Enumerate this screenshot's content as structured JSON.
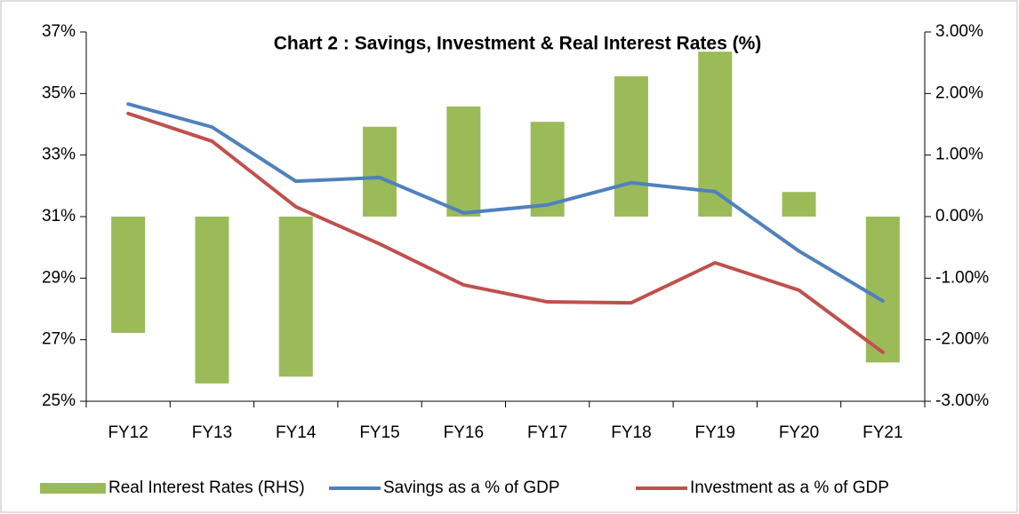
{
  "chart_data": {
    "type": "bar-line",
    "title": "Chart 2 : Savings, Investment & Real Interest Rates (%)",
    "categories": [
      "FY12",
      "FY13",
      "FY14",
      "FY15",
      "FY16",
      "FY17",
      "FY18",
      "FY19",
      "FY20",
      "FY21"
    ],
    "series": [
      {
        "name": "Real Interest Rates (RHS)",
        "type": "bar",
        "axis": "y2",
        "color": "#9bbb59",
        "values": [
          -1.89,
          -2.71,
          -2.6,
          1.46,
          1.79,
          1.54,
          2.28,
          2.68,
          0.4,
          -2.37
        ]
      },
      {
        "name": "Savings as a % of GDP",
        "type": "line",
        "axis": "y",
        "color": "#4f81bd",
        "values": [
          34.66,
          33.91,
          32.15,
          32.27,
          31.12,
          31.38,
          32.1,
          31.81,
          29.88,
          28.26
        ]
      },
      {
        "name": "Investment as a % of GDP",
        "type": "line",
        "axis": "y",
        "color": "#c0504d",
        "values": [
          34.35,
          33.45,
          31.32,
          30.11,
          28.78,
          28.23,
          28.2,
          29.5,
          28.61,
          26.59
        ]
      }
    ],
    "ylim": [
      25,
      37
    ],
    "yticks": [
      {
        "value": 25,
        "label": "25%"
      },
      {
        "value": 27,
        "label": "27%"
      },
      {
        "value": 29,
        "label": "29%"
      },
      {
        "value": 31,
        "label": "31%"
      },
      {
        "value": 33,
        "label": "33%"
      },
      {
        "value": 35,
        "label": "35%"
      },
      {
        "value": 37,
        "label": "37%"
      }
    ],
    "y2lim": [
      -3,
      3
    ],
    "y2ticks": [
      {
        "value": -3,
        "label": "-3.00%"
      },
      {
        "value": -2,
        "label": "-2.00%"
      },
      {
        "value": -1,
        "label": "-1.00%"
      },
      {
        "value": 0,
        "label": "0.00%"
      },
      {
        "value": 1,
        "label": "1.00%"
      },
      {
        "value": 2,
        "label": "2.00%"
      },
      {
        "value": 3,
        "label": "3.00%"
      }
    ],
    "legend": "bottom"
  }
}
